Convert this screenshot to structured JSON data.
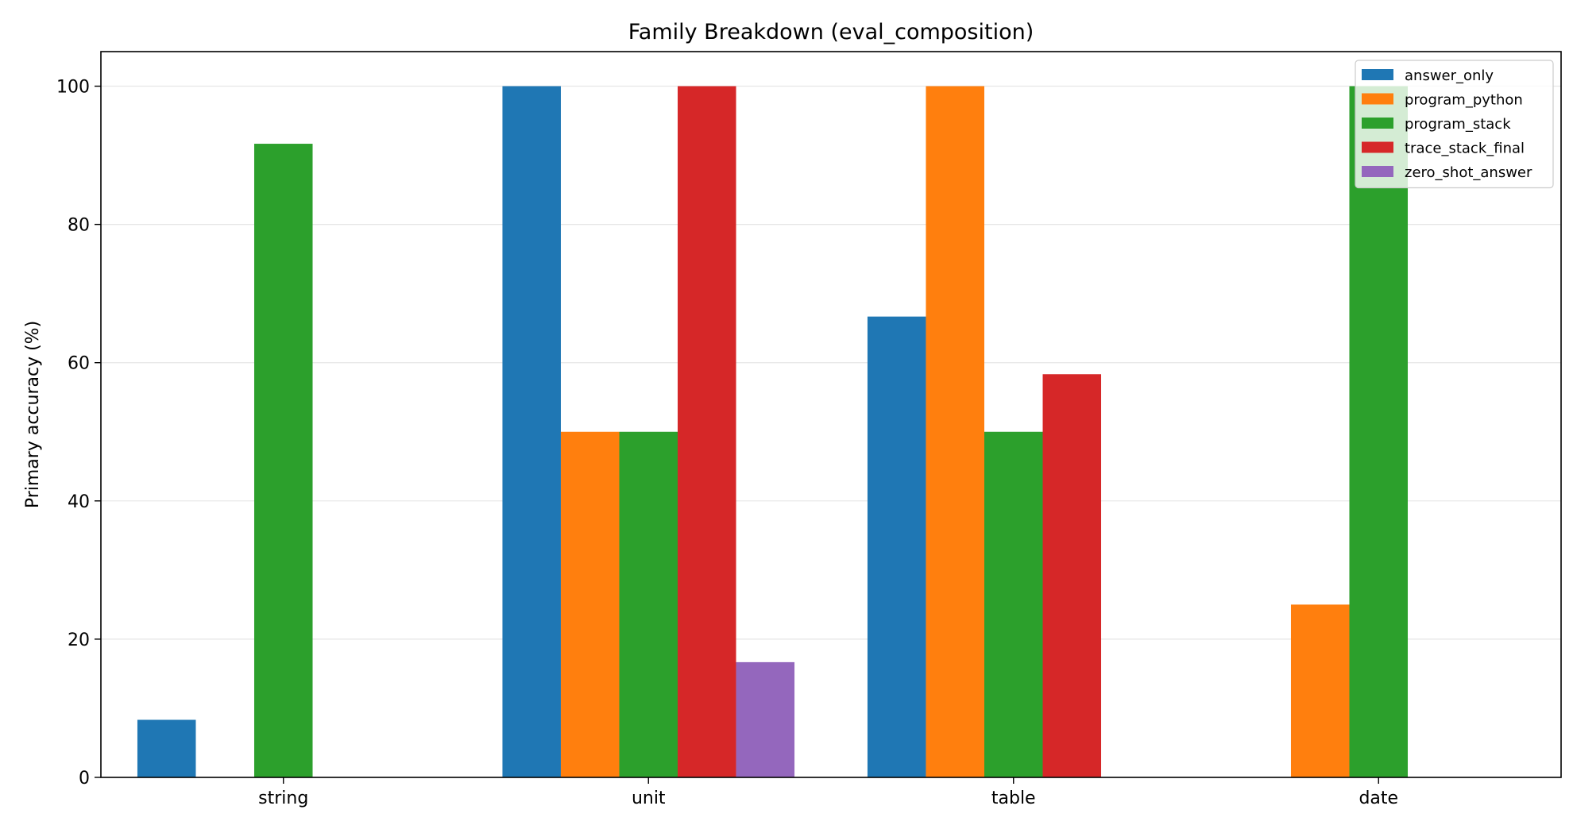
{
  "chart_data": {
    "type": "bar",
    "title": "Family Breakdown (eval_composition)",
    "xlabel": "",
    "ylabel": "Primary accuracy (%)",
    "ylim": [
      0,
      105
    ],
    "yticks": [
      0,
      20,
      40,
      60,
      80,
      100
    ],
    "grid": "y",
    "legend_position": "top-right",
    "categories": [
      "string",
      "unit",
      "table",
      "date"
    ],
    "series": [
      {
        "name": "answer_only",
        "color": "#1f77b4",
        "values": [
          8.33,
          100,
          66.67,
          0
        ]
      },
      {
        "name": "program_python",
        "color": "#ff7f0e",
        "values": [
          0,
          50,
          100,
          25
        ]
      },
      {
        "name": "program_stack",
        "color": "#2ca02c",
        "values": [
          91.67,
          50,
          50,
          100
        ]
      },
      {
        "name": "trace_stack_final",
        "color": "#d62728",
        "values": [
          0,
          100,
          58.33,
          0
        ]
      },
      {
        "name": "zero_shot_answer",
        "color": "#9467bd",
        "values": [
          0,
          16.67,
          0,
          0
        ]
      }
    ]
  }
}
